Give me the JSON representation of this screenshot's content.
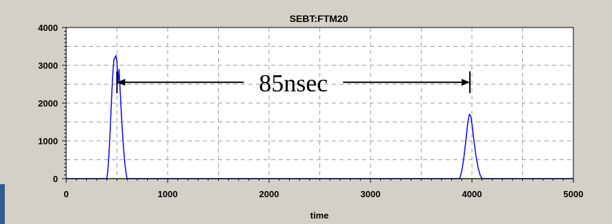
{
  "chart_data": {
    "type": "line",
    "title": "SEBT:FTM20",
    "xlabel": "time",
    "ylabel": "",
    "xlim": [
      0,
      5000
    ],
    "ylim": [
      0,
      4000
    ],
    "x_ticks": [
      "0",
      "1000",
      "2000",
      "3000",
      "4000",
      "5000"
    ],
    "y_ticks": [
      "0",
      "1000",
      "2000",
      "3000",
      "4000"
    ],
    "grid": true,
    "series": [
      {
        "color": "#0000ff",
        "points": [
          [
            0,
            0
          ],
          [
            400,
            0
          ],
          [
            410,
            200
          ],
          [
            420,
            600
          ],
          [
            430,
            1100
          ],
          [
            440,
            1700
          ],
          [
            450,
            2300
          ],
          [
            460,
            2800
          ],
          [
            470,
            3150
          ],
          [
            480,
            3200
          ],
          [
            490,
            3250
          ],
          [
            500,
            3100
          ],
          [
            510,
            2500
          ],
          [
            520,
            2900
          ],
          [
            530,
            2400
          ],
          [
            540,
            1900
          ],
          [
            550,
            1400
          ],
          [
            560,
            1000
          ],
          [
            570,
            650
          ],
          [
            580,
            350
          ],
          [
            590,
            150
          ],
          [
            600,
            0
          ],
          [
            3880,
            0
          ],
          [
            3900,
            200
          ],
          [
            3920,
            550
          ],
          [
            3940,
            1000
          ],
          [
            3960,
            1500
          ],
          [
            3975,
            1700
          ],
          [
            3990,
            1650
          ],
          [
            4000,
            1450
          ],
          [
            4020,
            1000
          ],
          [
            4040,
            600
          ],
          [
            4060,
            300
          ],
          [
            4080,
            100
          ],
          [
            4100,
            0
          ],
          [
            5000,
            0
          ]
        ]
      },
      {
        "color": "#008000",
        "points": [
          [
            0,
            0
          ],
          [
            5000,
            0
          ]
        ]
      }
    ],
    "annotation": {
      "text": "85nsec",
      "x_start": 500,
      "x_end": 3980,
      "y": 2550
    }
  }
}
